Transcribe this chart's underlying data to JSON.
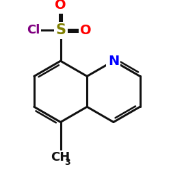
{
  "bg_color": "#ffffff",
  "bond_color": "#111111",
  "N_color": "#0000ff",
  "Cl_color": "#800080",
  "S_color": "#808000",
  "O_color": "#ff0000",
  "line_width": 2.2,
  "font_size_atoms": 14,
  "font_size_sub": 9,
  "xlim": [
    -0.5,
    4.2
  ],
  "ylim": [
    -2.8,
    2.4
  ]
}
